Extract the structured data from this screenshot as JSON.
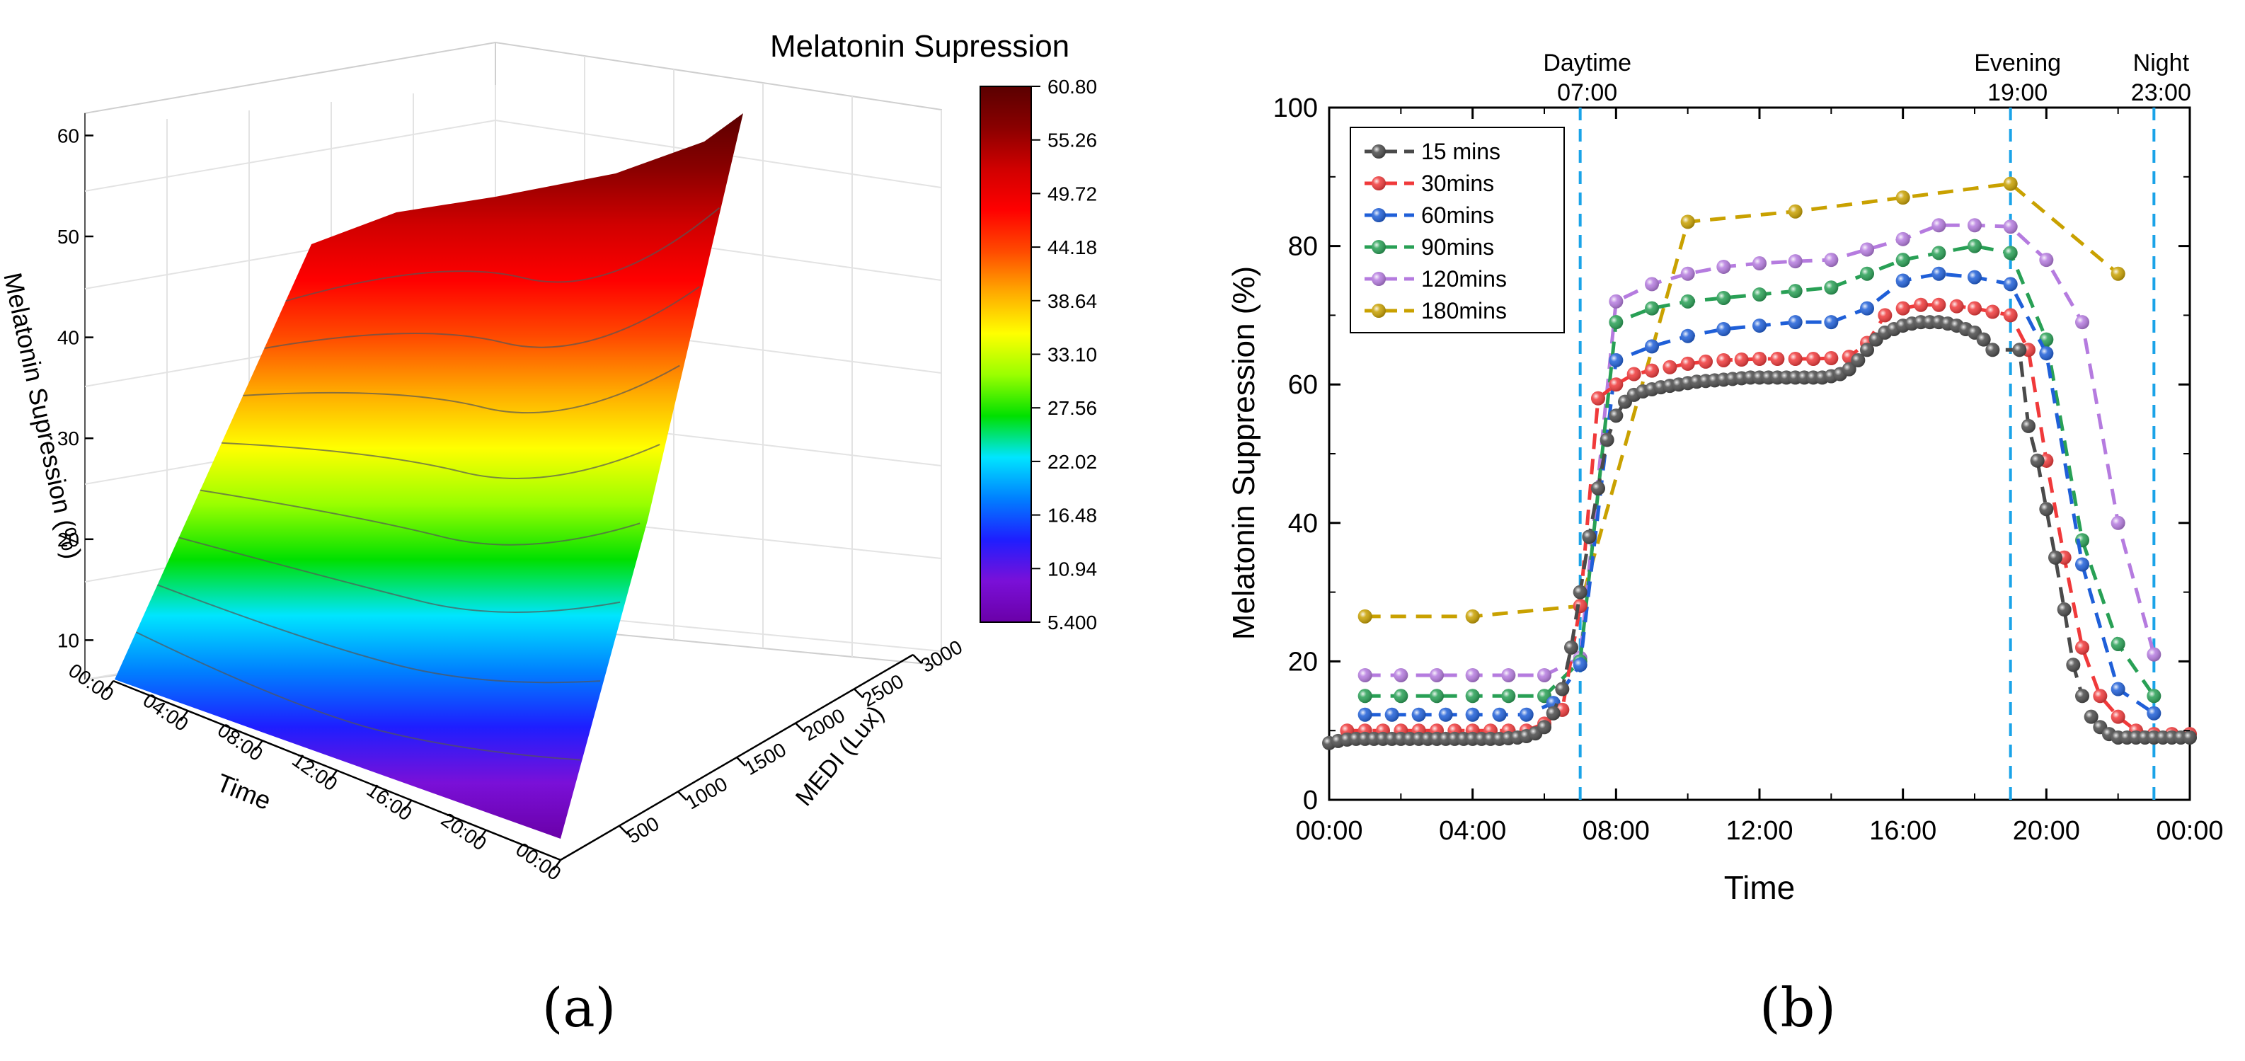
{
  "chart_data": [
    {
      "type": "surface3d",
      "panel_label": "(a)",
      "title": "Melatonin Supression",
      "zlabel": "Melatonin Supression (%)",
      "xlabel": "Time",
      "ylabel": "MEDI (Lux)",
      "x_ticks": [
        "00:00",
        "04:00",
        "08:00",
        "12:00",
        "16:00",
        "20:00",
        "00:00"
      ],
      "y_ticks": [
        "500",
        "1000",
        "1500",
        "2000",
        "2500",
        "3000"
      ],
      "z_ticks": [
        "10",
        "20",
        "30",
        "40",
        "50",
        "60"
      ],
      "colorbar_ticks": [
        "60.80",
        "55.26",
        "49.72",
        "44.18",
        "38.64",
        "33.10",
        "27.56",
        "22.02",
        "16.48",
        "10.94",
        "5.400"
      ],
      "zlim": [
        5.4,
        60.8
      ],
      "colors": [
        "#6a00a8",
        "#7a10d8",
        "#1e1eff",
        "#0080ff",
        "#00e5ff",
        "#00e000",
        "#9aff00",
        "#ffff00",
        "#ffaa00",
        "#ff4a00",
        "#ff0000",
        "#d00000",
        "#8a0000",
        "#5a0000"
      ],
      "approx_surface": {
        "z_min_at_lowest_medi": 5.4,
        "z_at_highest_medi_day": 45,
        "z_max": 60.8
      }
    },
    {
      "type": "line",
      "panel_label": "(b)",
      "xlabel": "Time",
      "ylabel": "Melatonin Suppression (%)",
      "ylim": [
        0,
        100
      ],
      "xlim": [
        0,
        24
      ],
      "y_ticks": [
        "0",
        "20",
        "40",
        "60",
        "80",
        "100"
      ],
      "x_ticks": [
        "00:00",
        "04:00",
        "08:00",
        "12:00",
        "16:00",
        "20:00",
        "00:00"
      ],
      "vlines": [
        {
          "x": 7,
          "label1": "Daytime",
          "label2": "07:00"
        },
        {
          "x": 19,
          "label1": "Evening",
          "label2": "19:00"
        },
        {
          "x": 23,
          "label1": "Night",
          "label2": "23:00"
        }
      ],
      "vline_color": "#1aa3e8",
      "series": [
        {
          "name": "15 mins",
          "color": "#4a4a4a",
          "x": [
            0,
            0.25,
            0.5,
            0.75,
            1,
            1.25,
            1.5,
            1.75,
            2,
            2.25,
            2.5,
            2.75,
            3,
            3.25,
            3.5,
            3.75,
            4,
            4.25,
            4.5,
            4.75,
            5,
            5.25,
            5.5,
            5.75,
            6,
            6.25,
            6.5,
            6.75,
            7,
            7.25,
            7.5,
            7.75,
            8,
            8.25,
            8.5,
            8.75,
            9,
            9.25,
            9.5,
            9.75,
            10,
            10.25,
            10.5,
            10.75,
            11,
            11.25,
            11.5,
            11.75,
            12,
            12.25,
            12.5,
            12.75,
            13,
            13.25,
            13.5,
            13.75,
            14,
            14.25,
            14.5,
            14.75,
            15,
            15.25,
            15.5,
            15.75,
            16,
            16.25,
            16.5,
            16.75,
            17,
            17.25,
            17.5,
            17.75,
            18,
            18.25,
            18.5,
            19.25,
            19.5,
            19.75,
            20,
            20.25,
            20.5,
            20.75,
            21,
            21.25,
            21.5,
            21.75,
            22,
            22.25,
            22.5,
            22.75,
            23,
            23.25,
            23.5,
            23.75,
            24
          ],
          "y": [
            8.2,
            8.5,
            8.7,
            8.8,
            8.8,
            8.8,
            8.8,
            8.8,
            8.8,
            8.8,
            8.8,
            8.8,
            8.8,
            8.8,
            8.8,
            8.8,
            8.8,
            8.8,
            8.8,
            8.8,
            8.9,
            9,
            9.2,
            9.6,
            10.5,
            12.5,
            16,
            22,
            30,
            38,
            45,
            52,
            55.5,
            57.5,
            58.5,
            59,
            59.3,
            59.6,
            59.8,
            60,
            60.2,
            60.4,
            60.5,
            60.6,
            60.7,
            60.8,
            60.9,
            61,
            61,
            61,
            61,
            61,
            61,
            61,
            61,
            61,
            61.2,
            61.5,
            62.2,
            63.5,
            65,
            66.5,
            67.5,
            68,
            68.5,
            68.8,
            69,
            69,
            69,
            68.8,
            68.5,
            68,
            67.5,
            66.5,
            65,
            65,
            54,
            49,
            42,
            35,
            27.5,
            19.5,
            15,
            12,
            10.5,
            9.5,
            9,
            9,
            9,
            9,
            9,
            9,
            9,
            9,
            9
          ]
        },
        {
          "name": "30mins",
          "color": "#f0393a",
          "x": [
            0.5,
            1,
            1.5,
            2,
            2.5,
            3,
            3.5,
            4,
            4.5,
            5,
            5.5,
            6,
            6.5,
            7,
            7.5,
            8,
            8.5,
            9,
            9.5,
            10,
            10.5,
            11,
            11.5,
            12,
            12.5,
            13,
            13.5,
            14,
            14.5,
            15,
            15.5,
            16,
            16.5,
            17,
            17.5,
            18,
            18.5,
            19,
            19.5,
            20,
            20.5,
            21,
            21.5,
            22,
            22.5,
            23,
            23.5,
            24
          ],
          "y": [
            10,
            10,
            10,
            10,
            10,
            10,
            10,
            10,
            10,
            10,
            10,
            11,
            13,
            28,
            58,
            60,
            61.5,
            62,
            62.5,
            63,
            63.3,
            63.5,
            63.6,
            63.7,
            63.7,
            63.7,
            63.7,
            63.8,
            64,
            66,
            70,
            71,
            71.5,
            71.5,
            71.3,
            71,
            70.5,
            70,
            65,
            49,
            35,
            22,
            15,
            12,
            10,
            9.5,
            9.5,
            9.5
          ]
        },
        {
          "name": "60mins",
          "color": "#1f5fd8",
          "x": [
            1,
            1.75,
            2.5,
            3.25,
            4,
            4.75,
            5.5,
            6.25,
            7,
            8,
            9,
            10,
            11,
            12,
            13,
            14,
            15,
            16,
            17,
            18,
            19,
            20,
            21,
            22,
            23
          ],
          "y": [
            12.3,
            12.3,
            12.3,
            12.3,
            12.3,
            12.3,
            12.3,
            14,
            19.5,
            63.5,
            65.5,
            67,
            68,
            68.5,
            69,
            69,
            71,
            75,
            76,
            75.5,
            74.5,
            64.5,
            34,
            16,
            12.5
          ]
        },
        {
          "name": "90mins",
          "color": "#28a055",
          "x": [
            1,
            2,
            3,
            4,
            5,
            6,
            7,
            8,
            9,
            10,
            11,
            12,
            13,
            14,
            15,
            16,
            17,
            18,
            19,
            20,
            21,
            22,
            23
          ],
          "y": [
            15,
            15,
            15,
            15,
            15,
            15,
            20,
            69,
            71,
            72,
            72.5,
            73,
            73.5,
            74,
            76,
            78,
            79,
            80,
            79,
            66.5,
            37.5,
            22.5,
            15
          ]
        },
        {
          "name": "120mins",
          "color": "#b57bdf",
          "x": [
            1,
            2,
            3,
            4,
            5,
            6,
            7,
            8,
            9,
            10,
            11,
            12,
            13,
            14,
            15,
            16,
            17,
            18,
            19,
            20,
            21,
            22,
            23
          ],
          "y": [
            18,
            18,
            18,
            18,
            18,
            18,
            20.5,
            72,
            74.5,
            76,
            77,
            77.5,
            77.8,
            78,
            79.5,
            81,
            83,
            83,
            82.8,
            78,
            69,
            40,
            21
          ]
        },
        {
          "name": "180mins",
          "color": "#c9a100",
          "x": [
            1,
            4,
            7,
            10,
            13,
            16,
            19,
            22
          ],
          "y": [
            26.5,
            26.5,
            28,
            83.5,
            85,
            87,
            89,
            76
          ]
        }
      ],
      "legend": {
        "position": "top-left"
      }
    }
  ]
}
